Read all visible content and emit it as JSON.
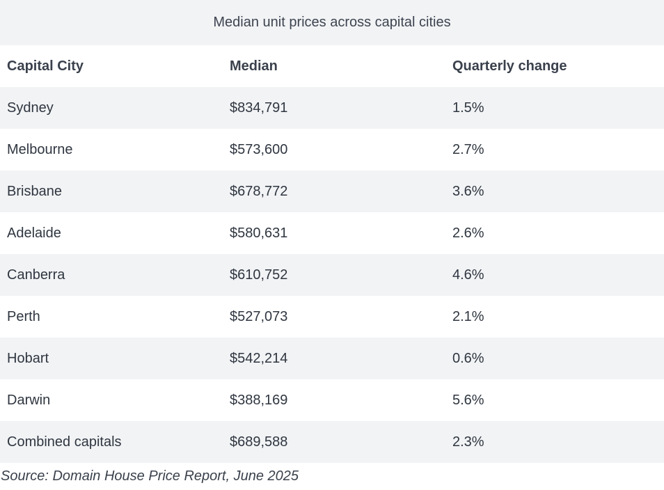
{
  "table": {
    "caption": "Median unit prices across capital cities",
    "headers": [
      "Capital City",
      "Median",
      "Quarterly change"
    ],
    "rows": [
      [
        "Sydney",
        "$834,791",
        "1.5%"
      ],
      [
        "Melbourne",
        "$573,600",
        "2.7%"
      ],
      [
        "Brisbane",
        "$678,772",
        "3.6%"
      ],
      [
        "Adelaide",
        "$580,631",
        "2.6%"
      ],
      [
        "Canberra",
        "$610,752",
        "4.6%"
      ],
      [
        "Perth",
        "$527,073",
        "2.1%"
      ],
      [
        "Hobart",
        "$542,214",
        "0.6%"
      ],
      [
        "Darwin",
        "$388,169",
        "5.6%"
      ],
      [
        "Combined capitals",
        "$689,588",
        "2.3%"
      ]
    ]
  },
  "source": "Source: Domain House Price Report, June 2025"
}
